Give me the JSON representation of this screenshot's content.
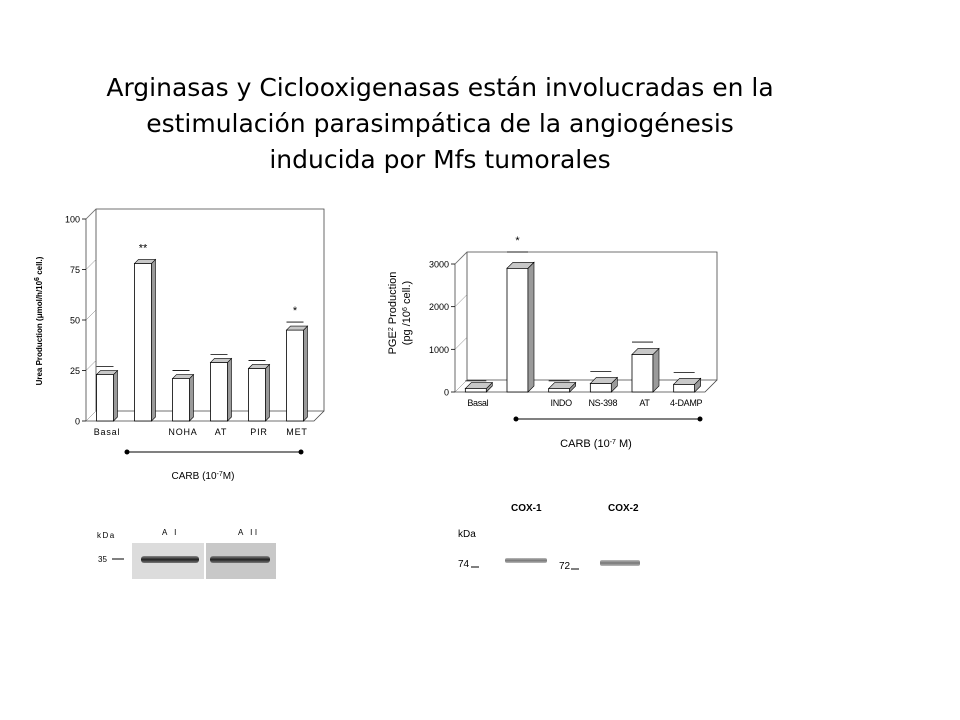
{
  "slide": {
    "title_lines": [
      "Arginasas y Ciclooxigenasas están involucradas en la",
      "estimulación parasimpática de la angiogénesis",
      "inducida por Mfs tumorales"
    ]
  },
  "chart_data": [
    {
      "type": "bar",
      "categories": [
        "Basal",
        "",
        "NOHA",
        "AT",
        "PIR",
        "MET"
      ],
      "values": [
        23,
        78,
        21,
        29,
        26,
        45
      ],
      "errors": [
        2,
        0,
        2,
        2,
        2,
        2
      ],
      "significance": [
        "",
        "**",
        "",
        "",
        "",
        "*"
      ],
      "ylabel_parts": [
        "Urea Production (",
        "μ",
        "mol/h/10",
        "6",
        " cell.)"
      ],
      "yticks": [
        0,
        25,
        50,
        75,
        100
      ],
      "ylim": [
        0,
        100
      ],
      "xlabel_parts": [
        "CARB (10",
        "-7",
        "M)"
      ],
      "grid": false
    },
    {
      "type": "bar",
      "categories": [
        "Basal",
        "",
        "INDO",
        "NS-398",
        "AT",
        "4-DAMP"
      ],
      "values": [
        80,
        2900,
        80,
        200,
        880,
        180
      ],
      "errors": [
        40,
        240,
        40,
        140,
        150,
        140
      ],
      "significance": [
        "",
        "*",
        "",
        "",
        "",
        ""
      ],
      "ylabel_parts": [
        "PGE",
        "2",
        " Production"
      ],
      "ylabel2_parts": [
        "(pg /10",
        "6",
        " cell.)"
      ],
      "yticks": [
        0,
        1000,
        2000,
        3000
      ],
      "ylim": [
        0,
        3000
      ],
      "xlabel_parts": [
        "CARB (10",
        "-7",
        " M)"
      ],
      "grid": false
    }
  ],
  "blots": {
    "arginase": {
      "unit": "kDa",
      "marker": "35",
      "lanes": [
        "A I",
        "A II"
      ]
    },
    "cox": {
      "unit": "kDa",
      "markers": [
        "74",
        "72"
      ],
      "lanes": [
        "COX-1",
        "COX-2"
      ]
    }
  }
}
